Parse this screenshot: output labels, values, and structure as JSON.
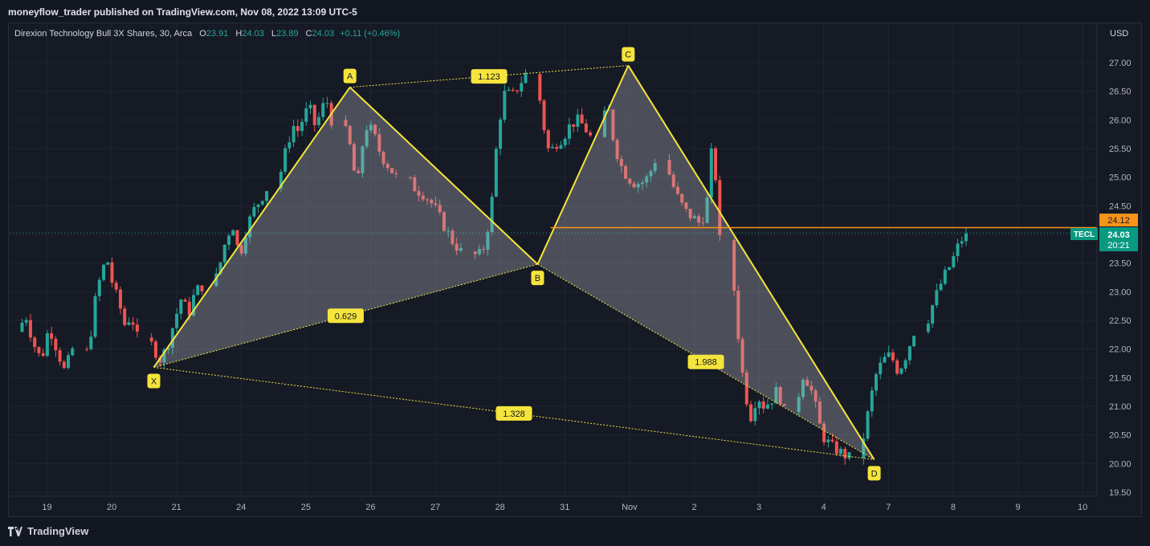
{
  "header": {
    "published": "moneyflow_trader published on TradingView.com, Nov 08, 2022 13:09 UTC-5"
  },
  "legend": {
    "symbol": "Direxion Technology Bull 3X Shares, 30, Arca",
    "o_label": "O",
    "o": "23.91",
    "h_label": "H",
    "h": "24.03",
    "l_label": "L",
    "l": "23.89",
    "c_label": "C",
    "c": "24.03",
    "change": "+0.11 (+0.46%)"
  },
  "footer": {
    "brand": "TradingView"
  },
  "colors": {
    "up": "#26a69a",
    "down": "#ef5350",
    "pattern": "#f5e43b",
    "hline": "#f7931a",
    "background": "#161a25"
  },
  "chart_data": {
    "type": "candlestick",
    "currency": "USD",
    "ylim": [
      19.45,
      27.35
    ],
    "y_ticks": [
      "19.50",
      "20.00",
      "20.50",
      "21.00",
      "21.50",
      "22.00",
      "22.50",
      "23.00",
      "23.50",
      "24.00",
      "24.50",
      "25.00",
      "25.50",
      "26.00",
      "26.50",
      "27.00"
    ],
    "x_ticks": [
      "19",
      "20",
      "21",
      "24",
      "25",
      "26",
      "27",
      "28",
      "31",
      "Nov",
      "2",
      "3",
      "4",
      "7",
      "8",
      "9",
      "10"
    ],
    "price_labels": [
      {
        "text": "24.12",
        "value": 24.12,
        "color": "#f7931a"
      },
      {
        "text": "24.03",
        "value": 24.03,
        "color": "#089981"
      },
      {
        "text": "20:21",
        "value": 23.88,
        "color": "#089981"
      }
    ],
    "symbol_badge": "TECL",
    "horizontal_line": {
      "value": 24.12,
      "from_session": 7.78,
      "to_session": 16
    },
    "current_price_line": 24.03,
    "harmonic_pattern": {
      "points": [
        {
          "label": "X",
          "session": 1.65,
          "price": 21.68
        },
        {
          "label": "A",
          "session": 4.68,
          "price": 26.57
        },
        {
          "label": "B",
          "session": 7.58,
          "price": 23.48
        },
        {
          "label": "C",
          "session": 8.98,
          "price": 26.95
        },
        {
          "label": "D",
          "session": 12.78,
          "price": 20.07
        }
      ],
      "ratios": [
        {
          "text": "1.123",
          "from": "A",
          "to": "C"
        },
        {
          "text": "0.629",
          "from": "X",
          "to": "B"
        },
        {
          "text": "1.988",
          "from": "B",
          "to": "D"
        },
        {
          "text": "1.328",
          "from": "X",
          "to": "D"
        }
      ]
    },
    "sessions": [
      {
        "label": "19",
        "path": [
          22.3,
          22.6,
          22.1,
          21.8,
          22.4,
          22.0,
          21.6,
          22.0
        ]
      },
      {
        "label": "20",
        "path": [
          21.8,
          22.0,
          22.8,
          23.3,
          23.6,
          23.1,
          22.8,
          22.4,
          22.6,
          22.2
        ]
      },
      {
        "label": "21",
        "path": [
          22.2,
          22.0,
          21.8,
          22.1,
          22.5,
          22.9,
          22.6,
          23.0,
          23.1
        ]
      },
      {
        "label": "24",
        "path": [
          23.0,
          23.4,
          23.9,
          24.2,
          23.6,
          24.1,
          24.4,
          24.6,
          24.8
        ]
      },
      {
        "label": "25",
        "path": [
          24.8,
          25.2,
          25.6,
          25.9,
          25.8,
          26.1,
          26.2,
          25.9,
          26.1,
          26.4,
          26.0
        ]
      },
      {
        "label": "26",
        "path": [
          26.0,
          25.6,
          24.8,
          25.9,
          25.8,
          25.4,
          25.2,
          25.0
        ]
      },
      {
        "label": "27",
        "path": [
          25.0,
          24.8,
          24.7,
          24.5,
          24.2,
          23.9,
          23.7
        ]
      },
      {
        "label": "28",
        "path": [
          23.7,
          23.6,
          23.8,
          24.5,
          25.9,
          26.5,
          26.4,
          26.6,
          26.8
        ]
      },
      {
        "label": "31",
        "path": [
          26.9,
          26.0,
          25.4,
          25.6,
          25.7,
          25.9,
          26.0,
          25.9,
          25.7
        ]
      },
      {
        "label": "Nov",
        "path": [
          25.7,
          26.3,
          25.6,
          25.2,
          25.0,
          24.9,
          24.9,
          25.0,
          25.3
        ]
      },
      {
        "label": "2",
        "path": [
          25.3,
          24.9,
          24.6,
          24.4,
          24.3,
          24.2,
          24.4,
          25.7,
          23.9
        ]
      },
      {
        "label": "3",
        "path": [
          23.9,
          22.5,
          21.4,
          20.8,
          21.2,
          21.0,
          21.1,
          21.3,
          20.9
        ]
      },
      {
        "label": "4",
        "path": [
          20.9,
          21.6,
          21.2,
          20.5,
          20.3,
          20.2,
          20.1
        ]
      },
      {
        "label": "7",
        "path": [
          20.1,
          20.8,
          21.5,
          21.8,
          21.9,
          21.6,
          21.9,
          22.3
        ]
      },
      {
        "label": "8",
        "path": [
          22.3,
          22.8,
          23.2,
          23.5,
          23.9,
          24.0,
          24.03
        ]
      }
    ]
  }
}
